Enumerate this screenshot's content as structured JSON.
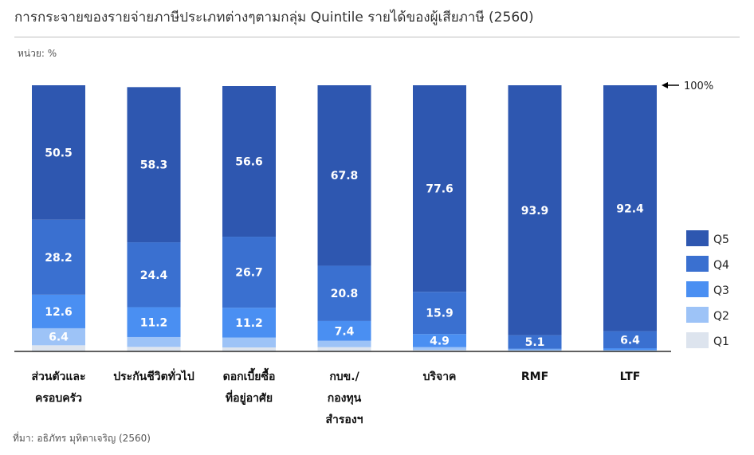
{
  "title": "การกระจายของรายจ่ายภาษีประเภทต่างๆตามกลุ่ม Quintile รายได้ของผู้เสียภาษี (2560)",
  "unit": "หน่วย: %",
  "source": "ที่มา: อธิภัทร มุทิตาเจริญ (2560)",
  "colors": {
    "Q1": "#dde4ee",
    "Q2": "#9dc3f7",
    "Q3": "#4a8ff2",
    "Q4": "#3a70d0",
    "Q5": "#2e57b0"
  },
  "chart_data": {
    "type": "bar",
    "stacked": true,
    "ylim": [
      0,
      100
    ],
    "reference_label": "100%",
    "categories": [
      [
        "ส่วนตัวและ",
        "ครอบครัว"
      ],
      [
        "ประกันชีวิตทั่วไป"
      ],
      [
        "ดอกเบี้ยซื้อ",
        "ที่อยู่อาศัย"
      ],
      [
        "กบข./",
        "กองทุน",
        "สำรองฯ"
      ],
      [
        "บริจาค"
      ],
      [
        "RMF"
      ],
      [
        "LTF"
      ]
    ],
    "series": [
      {
        "name": "Q1",
        "values": [
          2.3,
          1.7,
          1.5,
          1.6,
          0.5,
          0.3,
          0.2
        ],
        "labels": [
          "",
          "",
          "",
          "",
          "",
          "",
          ""
        ]
      },
      {
        "name": "Q2",
        "values": [
          6.4,
          3.7,
          3.7,
          2.4,
          1.1,
          0.4,
          0.3
        ],
        "labels": [
          "6.4",
          "",
          "",
          "",
          "",
          "",
          ""
        ]
      },
      {
        "name": "Q3",
        "values": [
          12.6,
          11.2,
          11.2,
          7.4,
          4.9,
          0.3,
          0.7
        ],
        "labels": [
          "12.6",
          "11.2",
          "11.2",
          "7.4",
          "4.9",
          "",
          ""
        ]
      },
      {
        "name": "Q4",
        "values": [
          28.2,
          24.4,
          26.7,
          20.8,
          15.9,
          5.1,
          6.4
        ],
        "labels": [
          "28.2",
          "24.4",
          "26.7",
          "20.8",
          "15.9",
          "5.1",
          "6.4"
        ]
      },
      {
        "name": "Q5",
        "values": [
          50.5,
          58.3,
          56.6,
          67.8,
          77.6,
          93.9,
          92.4
        ],
        "labels": [
          "50.5",
          "58.3",
          "56.6",
          "67.8",
          "77.6",
          "93.9",
          "92.4"
        ]
      }
    ],
    "legend": {
      "position": "right",
      "order": [
        "Q5",
        "Q4",
        "Q3",
        "Q2",
        "Q1"
      ]
    }
  }
}
